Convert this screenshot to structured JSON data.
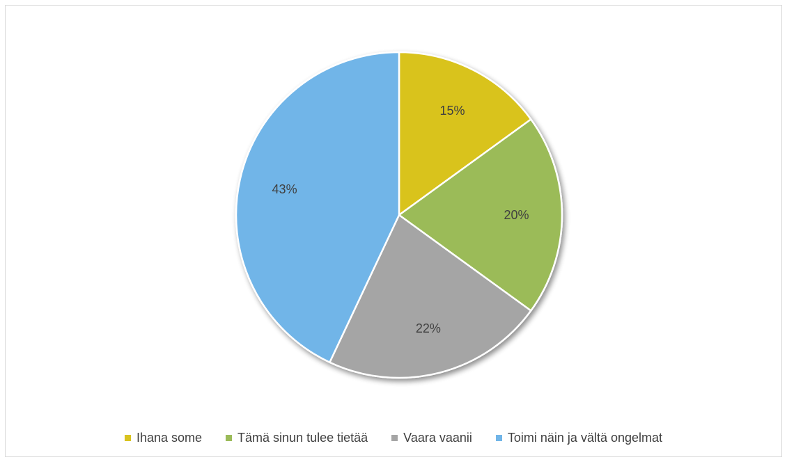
{
  "chart_data": {
    "type": "pie",
    "title": "",
    "categories": [
      "Ihana some",
      "Tämä sinun tulee tietää",
      "Vaara vaanii",
      "Toimi näin ja vältä ongelmat"
    ],
    "values": [
      15,
      20,
      22,
      43
    ],
    "labels": [
      "15%",
      "20%",
      "22%",
      "43%"
    ],
    "colors": [
      "#d9c31f",
      "#9bbb59",
      "#a5a5a5",
      "#71b5e8"
    ],
    "legend_position": "bottom",
    "start_angle": "top",
    "direction": "clockwise"
  }
}
